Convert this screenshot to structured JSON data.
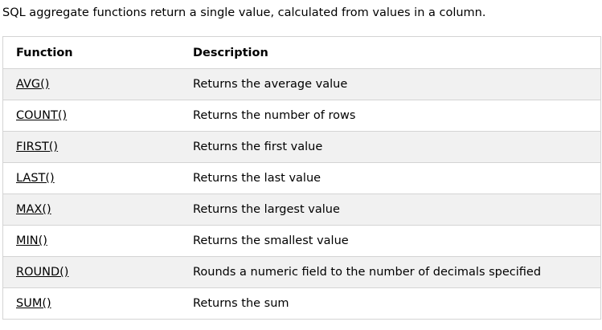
{
  "intro": "SQL aggregate functions return a single value, calculated from values in a column.",
  "table": {
    "headers": {
      "function": "Function",
      "description": "Description"
    },
    "rows": [
      {
        "function": "AVG()",
        "description": "Returns the average value"
      },
      {
        "function": "COUNT()",
        "description": "Returns the number of rows"
      },
      {
        "function": "FIRST()",
        "description": "Returns the first value"
      },
      {
        "function": "LAST()",
        "description": "Returns the last value"
      },
      {
        "function": "MAX()",
        "description": "Returns the largest value"
      },
      {
        "function": "MIN()",
        "description": "Returns the smallest value"
      },
      {
        "function": "ROUND()",
        "description": "Rounds a numeric field to the number of decimals specified"
      },
      {
        "function": "SUM()",
        "description": "Returns the sum"
      }
    ]
  },
  "colors": {
    "border": "#d4d4d4",
    "alt_row": "#f1f1f1",
    "text": "#000000"
  }
}
